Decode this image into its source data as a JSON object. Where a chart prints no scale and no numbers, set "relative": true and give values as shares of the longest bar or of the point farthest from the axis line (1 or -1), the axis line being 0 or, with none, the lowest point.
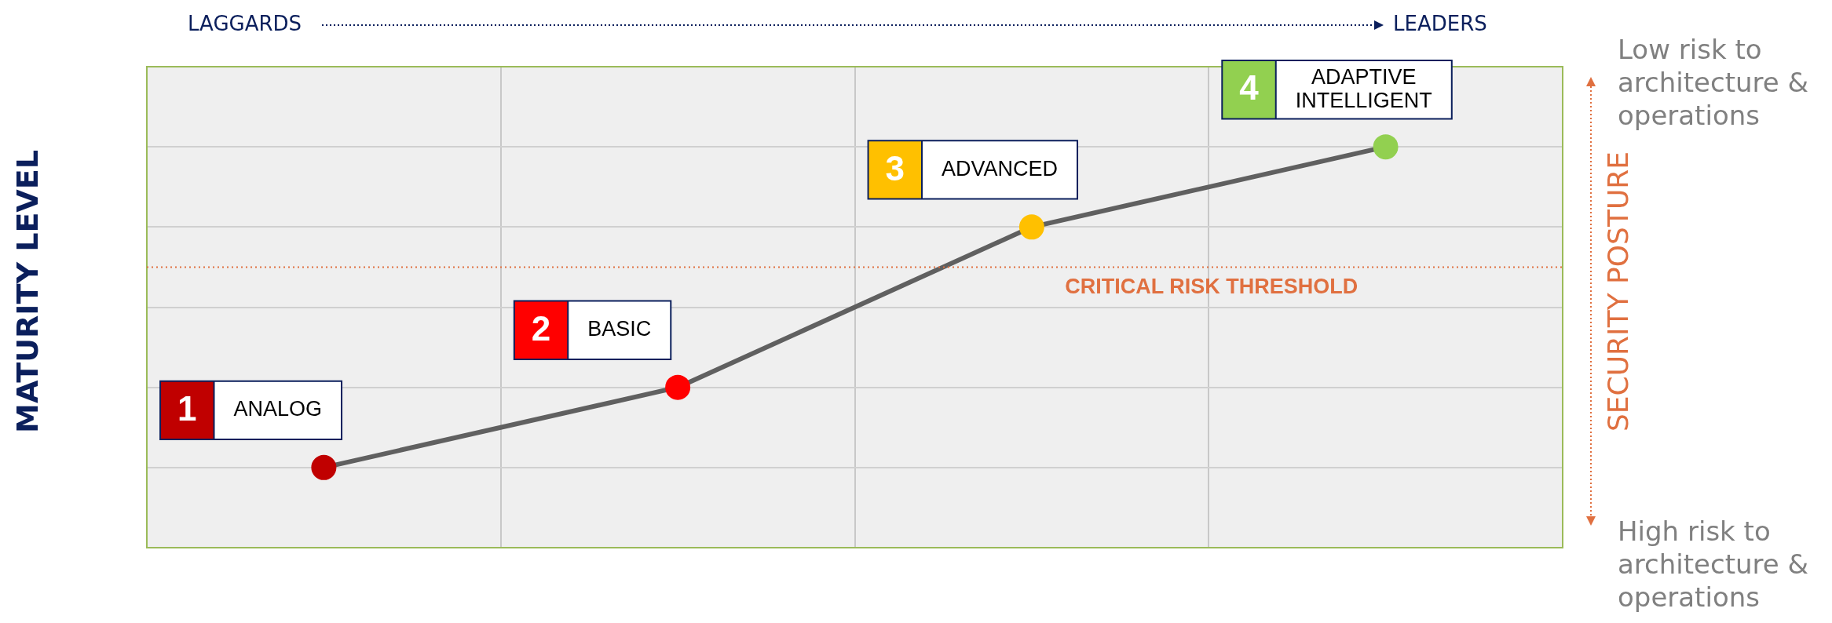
{
  "chart_data": {
    "type": "line",
    "relative": true,
    "ylabel": "MATURITY LEVEL",
    "y2label": "SECURITY POSTURE",
    "categories": [
      null,
      null,
      null,
      null
    ],
    "series": [
      {
        "color": "#606060",
        "colors": [
          "#c00000",
          "#ff0000",
          "#ffc000",
          "#92d050"
        ],
        "values": [
          0.2,
          0.4,
          0.8,
          1.0
        ]
      }
    ],
    "ref_lines": [
      {
        "axis": "y",
        "value": 0.7,
        "label": "CRITICAL RISK THRESHOLD",
        "color": "#e07040",
        "line_style": "dotted"
      }
    ],
    "annotations": [
      "LAGGARDS",
      "LEADERS",
      "Low risk to architecture & operations",
      "High risk to architecture & operations",
      "1 ANALOG",
      "2 BASIC",
      "3 ADVANCED",
      "4 ADAPTIVE INTELLIGENT"
    ],
    "grid": true,
    "marker": "circle",
    "line_style": "solid",
    "legend": false
  }
}
